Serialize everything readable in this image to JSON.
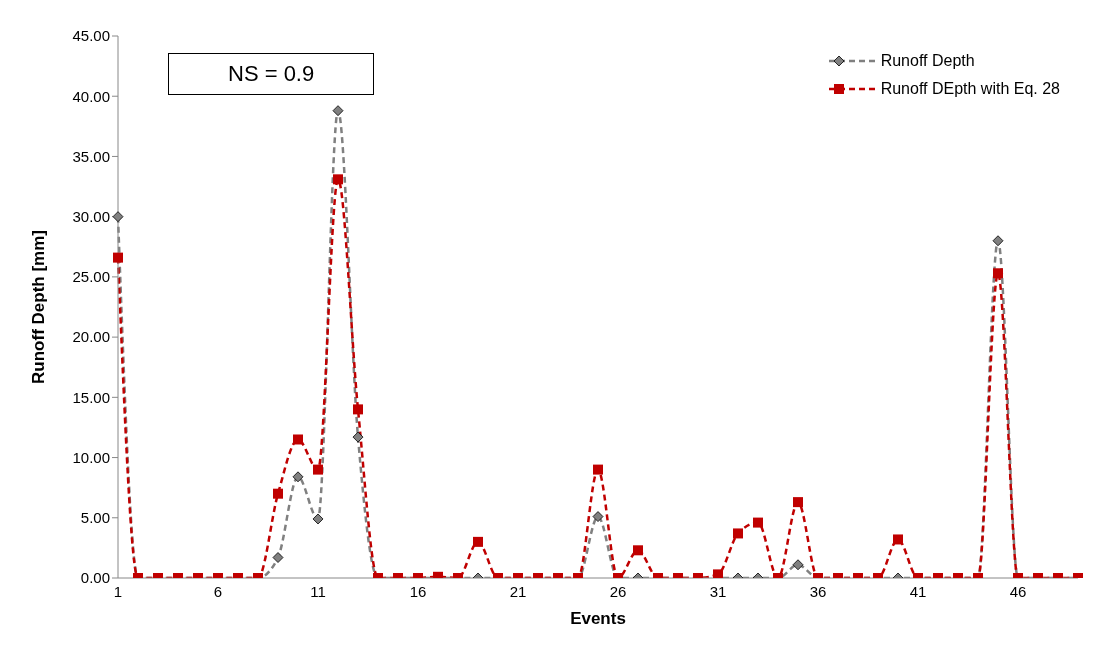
{
  "chart_data": {
    "type": "line",
    "xlabel": "Events",
    "ylabel": "Runoff Depth [mm]",
    "categories": [
      "1",
      null,
      null,
      null,
      null,
      "6",
      null,
      null,
      null,
      null,
      "11",
      null,
      null,
      null,
      null,
      "16",
      null,
      null,
      null,
      null,
      "21",
      null,
      null,
      null,
      null,
      "26",
      null,
      null,
      null,
      null,
      "31",
      null,
      null,
      null,
      null,
      "36",
      null,
      null,
      null,
      null,
      "41",
      null,
      null,
      null,
      null,
      "46",
      null,
      null,
      null
    ],
    "series": [
      {
        "name": "Runoff Depth",
        "color": "#808080",
        "marker": "diamond",
        "values": [
          30,
          0,
          0,
          0,
          0,
          0,
          0,
          0,
          1.7,
          8.4,
          4.9,
          38.8,
          11.7,
          0,
          0,
          0,
          0,
          0,
          0,
          0,
          0,
          0,
          0,
          0,
          5.1,
          0,
          0,
          0,
          0,
          0,
          0,
          0,
          0,
          0,
          1.1,
          0,
          0,
          0,
          0,
          0,
          0,
          0,
          0,
          0,
          28,
          0,
          0,
          0,
          0
        ]
      },
      {
        "name": "Runoff DEpth with Eq. 28",
        "color": "#c00000",
        "marker": "square",
        "values": [
          26.6,
          0,
          0,
          0,
          0,
          0,
          0,
          0,
          7.0,
          11.5,
          9.0,
          33.1,
          14.0,
          0,
          0,
          0,
          0.1,
          0,
          3.0,
          0,
          0,
          0,
          0,
          0,
          9.0,
          0,
          2.3,
          0,
          0,
          0,
          0.3,
          3.7,
          4.6,
          0,
          6.3,
          0,
          0,
          0,
          0,
          3.2,
          0,
          0,
          0,
          0,
          25.3,
          0,
          0,
          0,
          0
        ]
      }
    ],
    "ylim": [
      0,
      45
    ],
    "yticks": [
      {
        "value": 0,
        "label": "0.00"
      },
      {
        "value": 5,
        "label": "5.00"
      },
      {
        "value": 10,
        "label": "10.00"
      },
      {
        "value": 15,
        "label": "15.00"
      },
      {
        "value": 20,
        "label": "20.00"
      },
      {
        "value": 25,
        "label": "25.00"
      },
      {
        "value": 30,
        "label": "30.00"
      },
      {
        "value": 35,
        "label": "35.00"
      },
      {
        "value": 40,
        "label": "40.00"
      },
      {
        "value": 45,
        "label": "45.00"
      }
    ],
    "grid": false,
    "legend": "top right",
    "line_style": "dashed",
    "annotations": [
      "NS = 0.9"
    ]
  }
}
